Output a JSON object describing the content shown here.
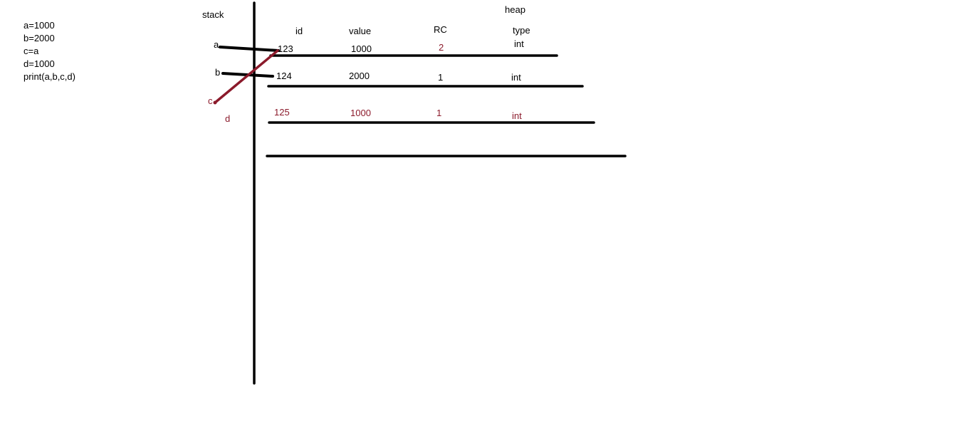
{
  "colors": {
    "ink": "#000000",
    "reference": "#8b1a2b"
  },
  "code_lines": [
    "a=1000",
    "b=2000",
    "c=a",
    "d=1000",
    "print(a,b,c,d)"
  ],
  "labels": {
    "stack": "stack",
    "heap": "heap"
  },
  "heap_table": {
    "columns": [
      "id",
      "value",
      "RC",
      "type"
    ],
    "rows": [
      {
        "id": "123",
        "value": "1000",
        "rc": "2",
        "type": "int"
      },
      {
        "id": "124",
        "value": "2000",
        "rc": "1",
        "type": "int"
      },
      {
        "id": "125",
        "value": "1000",
        "rc": "1",
        "type": "int"
      }
    ]
  },
  "stack_vars": [
    "a",
    "b",
    "c",
    "d"
  ]
}
